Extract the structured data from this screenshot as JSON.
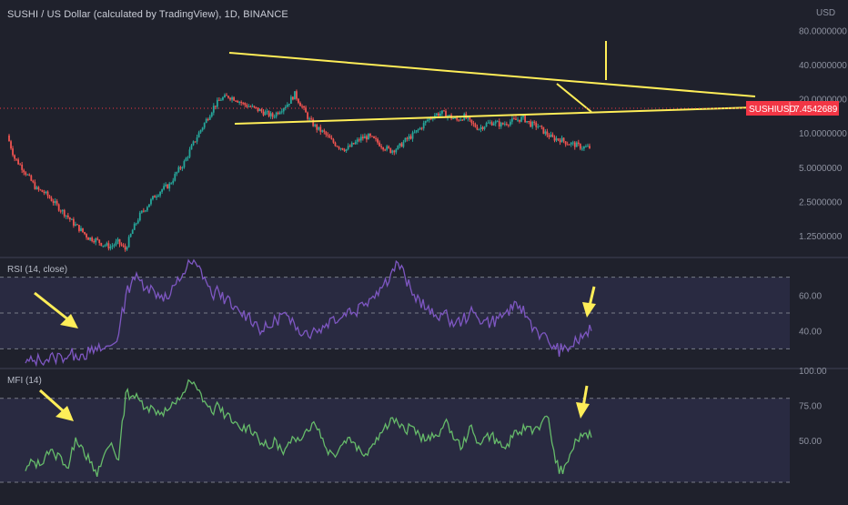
{
  "header": {
    "symbol_title": "SUSHI / US Dollar (calculated by TradingView), 1D, BINANCE",
    "currency_unit": "USD"
  },
  "price_axis": {
    "scale": "log",
    "ticks": [
      "80.0000000",
      "40.0000000",
      "20.0000000",
      "10.0000000",
      "5.0000000",
      "2.5000000",
      "1.2500000"
    ],
    "tick_values": [
      80,
      40,
      20,
      10,
      5,
      2.5,
      1.25
    ]
  },
  "last_price": {
    "ticker": "SUSHIUSD",
    "value": "7.4542689",
    "color": "#f23645"
  },
  "panes": {
    "rsi": {
      "label": "RSI (14, close)",
      "ticks": [
        "60.00",
        "40.00"
      ],
      "tick_values": [
        60,
        40
      ],
      "band_levels": [
        70,
        50,
        30
      ],
      "range": [
        20,
        80
      ],
      "line_color": "#7e57c2"
    },
    "mfi": {
      "label": "MFI (14)",
      "ticks": [
        "100.00",
        "75.00",
        "50.00"
      ],
      "tick_values": [
        100,
        75,
        50
      ],
      "band_levels": [
        80,
        20
      ],
      "range": [
        20,
        100
      ],
      "line_color": "#66bb6a"
    }
  },
  "colors": {
    "background": "#1f212c",
    "up_candle": "#26a69a",
    "down_candle": "#ef5350",
    "annotation": "#ffee58",
    "band_fill": "#2a2b44"
  },
  "chart_data": [
    {
      "type": "candlestick",
      "title": "SUSHI / US Dollar (calculated by TradingView), 1D, BINANCE",
      "y_scale": "log",
      "ylim": [
        0.85,
        85
      ],
      "series": [
        {
          "name": "SUSHIUSD",
          "close": [
            9.5,
            6.0,
            5.0,
            4.0,
            3.2,
            3.0,
            2.6,
            2.2,
            1.9,
            1.6,
            1.4,
            1.2,
            1.15,
            1.05,
            1.0,
            1.1,
            0.95,
            1.4,
            1.9,
            2.3,
            2.8,
            3.2,
            3.5,
            4.5,
            5.5,
            7.5,
            10,
            13,
            17,
            20,
            21,
            20,
            18,
            17,
            16,
            15,
            14,
            16,
            18,
            22,
            17,
            13,
            11,
            10,
            8.5,
            7.6,
            7.2,
            8.0,
            9.0,
            9.3,
            8.5,
            7.6,
            7.0,
            7.4,
            8.6,
            9.6,
            11,
            13,
            14.5,
            15,
            14,
            13,
            14,
            12,
            11,
            12,
            12.5,
            11.8,
            12.5,
            13,
            13.5,
            12,
            11.5,
            10,
            9,
            8.8,
            8.2,
            7.9,
            7.5,
            7.45
          ]
        }
      ]
    },
    {
      "type": "line",
      "title": "RSI (14, close)",
      "ylim": [
        20,
        80
      ],
      "series": [
        {
          "name": "RSI (14, close)",
          "values": [
            22,
            23,
            24,
            24,
            25,
            26,
            26,
            27,
            27,
            28,
            29,
            30,
            32,
            38,
            60,
            70,
            68,
            65,
            62,
            60,
            58,
            66,
            72,
            78,
            76,
            70,
            60,
            62,
            58,
            52,
            50,
            49,
            45,
            40,
            42,
            46,
            50,
            44,
            42,
            40,
            39,
            41,
            44,
            48,
            47,
            52,
            50,
            56,
            58,
            62,
            66,
            72,
            78,
            70,
            60,
            58,
            52,
            48,
            50,
            47,
            44,
            46,
            50,
            48,
            46,
            45,
            47,
            50,
            52,
            54,
            48,
            42,
            38,
            34,
            30,
            29,
            31,
            34,
            38,
            40
          ]
        }
      ]
    },
    {
      "type": "line",
      "title": "MFI (14)",
      "ylim": [
        20,
        100
      ],
      "series": [
        {
          "name": "MFI (14)",
          "values": [
            28,
            35,
            32,
            42,
            40,
            38,
            30,
            52,
            45,
            34,
            24,
            40,
            48,
            36,
            84,
            82,
            78,
            74,
            72,
            70,
            72,
            76,
            84,
            92,
            86,
            78,
            70,
            75,
            68,
            62,
            58,
            60,
            56,
            48,
            44,
            50,
            40,
            48,
            52,
            56,
            62,
            58,
            44,
            40,
            46,
            52,
            48,
            40,
            44,
            52,
            58,
            66,
            62,
            56,
            60,
            54,
            50,
            52,
            58,
            62,
            50,
            45,
            60,
            48,
            52,
            54,
            48,
            44,
            52,
            56,
            60,
            58,
            62,
            66,
            34,
            26,
            40,
            50,
            55,
            52
          ]
        }
      ]
    }
  ]
}
